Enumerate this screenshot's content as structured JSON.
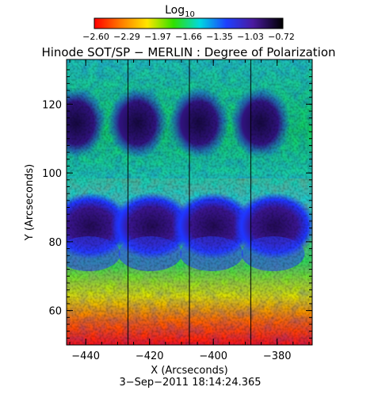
{
  "colorbar": {
    "label": "Log",
    "label_subscript": "10",
    "ticks": [
      "−2.60",
      "−2.29",
      "−1.97",
      "−1.66",
      "−1.35",
      "−1.03",
      "−0.72"
    ],
    "range": [
      -2.6,
      -0.72
    ],
    "colormap": "rainbow (red → orange → yellow → green → cyan → blue → violet → black)"
  },
  "title": "Hinode SOT/SP − MERLIN : Degree of Polarization",
  "xaxis": {
    "label": "X (Arcseconds)",
    "ticks": [
      "−440",
      "−420",
      "−400",
      "−380"
    ],
    "range": [
      -446,
      -369
    ]
  },
  "yaxis": {
    "label": "Y (Arcseconds)",
    "ticks": [
      "60",
      "80",
      "100",
      "120"
    ],
    "range": [
      50,
      133
    ]
  },
  "timestamp": "3−Sep−2011 18:14:24.365",
  "colors": {
    "frame": "#000000",
    "background": "#ffffff"
  }
}
